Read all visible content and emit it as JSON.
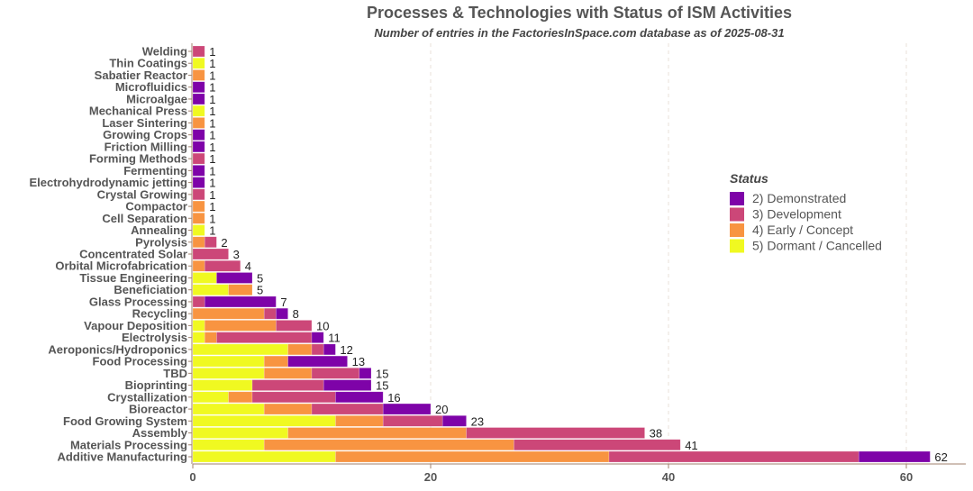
{
  "chart_data": {
    "type": "bar",
    "orientation": "horizontal",
    "stacked": true,
    "title": "Processes & Technologies with Status of ISM Activities",
    "subtitle": "Number of entries in the FactoriesInSpace.com database as of 2025-08-31",
    "xlabel": "",
    "ylabel": "",
    "xlim": [
      0,
      65
    ],
    "xticks": [
      0,
      20,
      40,
      60
    ],
    "grid": "vertical dashed",
    "legend": {
      "title": "Status",
      "placement": "right",
      "entries": [
        "2)  Demonstrated",
        "3)  Development",
        "4)  Early / Concept",
        "5)  Dormant / Cancelled"
      ]
    },
    "colors": {
      "Dormant / Cancelled": "#f0f921",
      "Early / Concept": "#f89441",
      "Development": "#cc4778",
      "Demonstrated": "#7e03a8"
    },
    "categories": [
      "Welding",
      "Thin Coatings",
      "Sabatier Reactor",
      "Microfluidics",
      "Microalgae",
      "Mechanical Press",
      "Laser Sintering",
      "Growing Crops",
      "Friction Milling",
      "Forming Methods",
      "Fermenting",
      "Electrohydrodynamic jetting",
      "Crystal Growing",
      "Compactor",
      "Cell Separation",
      "Annealing",
      "Pyrolysis",
      "Concentrated Solar",
      "Orbital Microfabrication",
      "Tissue Engineering",
      "Beneficiation",
      "Glass Processing",
      "Recycling",
      "Vapour Deposition",
      "Electrolysis",
      "Aeroponics/Hydroponics",
      "Food Processing",
      "TBD",
      "Bioprinting",
      "Crystallization",
      "Bioreactor",
      "Food Growing System",
      "Assembly",
      "Materials Processing",
      "Additive Manufacturing"
    ],
    "series": [
      {
        "name": "5)  Dormant / Cancelled",
        "key": "Dormant / Cancelled",
        "values": [
          0,
          1,
          0,
          0,
          0,
          1,
          0,
          0,
          0,
          0,
          0,
          0,
          0,
          0,
          0,
          1,
          0,
          0,
          0,
          2,
          3,
          0,
          0,
          1,
          1,
          8,
          6,
          6,
          5,
          3,
          6,
          12,
          8,
          6,
          12
        ]
      },
      {
        "name": "4)  Early / Concept",
        "key": "Early / Concept",
        "values": [
          0,
          0,
          1,
          0,
          0,
          0,
          1,
          0,
          0,
          0,
          0,
          0,
          0,
          1,
          1,
          0,
          1,
          0,
          1,
          0,
          2,
          0,
          6,
          6,
          1,
          2,
          2,
          4,
          0,
          2,
          4,
          4,
          15,
          21,
          23
        ]
      },
      {
        "name": "3)  Development",
        "key": "Development",
        "values": [
          1,
          0,
          0,
          0,
          0,
          0,
          0,
          0,
          0,
          1,
          0,
          0,
          1,
          0,
          0,
          0,
          1,
          3,
          3,
          0,
          0,
          1,
          1,
          3,
          8,
          1,
          0,
          4,
          6,
          7,
          6,
          5,
          15,
          14,
          21
        ]
      },
      {
        "name": "2)  Demonstrated",
        "key": "Demonstrated",
        "values": [
          0,
          0,
          0,
          1,
          1,
          0,
          0,
          1,
          1,
          0,
          1,
          1,
          0,
          0,
          0,
          0,
          0,
          0,
          0,
          3,
          0,
          6,
          1,
          0,
          1,
          1,
          5,
          1,
          4,
          4,
          4,
          2,
          0,
          0,
          6
        ]
      }
    ],
    "totals": [
      1,
      1,
      1,
      1,
      1,
      1,
      1,
      1,
      1,
      1,
      1,
      1,
      1,
      1,
      1,
      1,
      2,
      3,
      4,
      5,
      5,
      7,
      8,
      10,
      11,
      12,
      13,
      15,
      15,
      16,
      20,
      23,
      38,
      41,
      62
    ]
  }
}
